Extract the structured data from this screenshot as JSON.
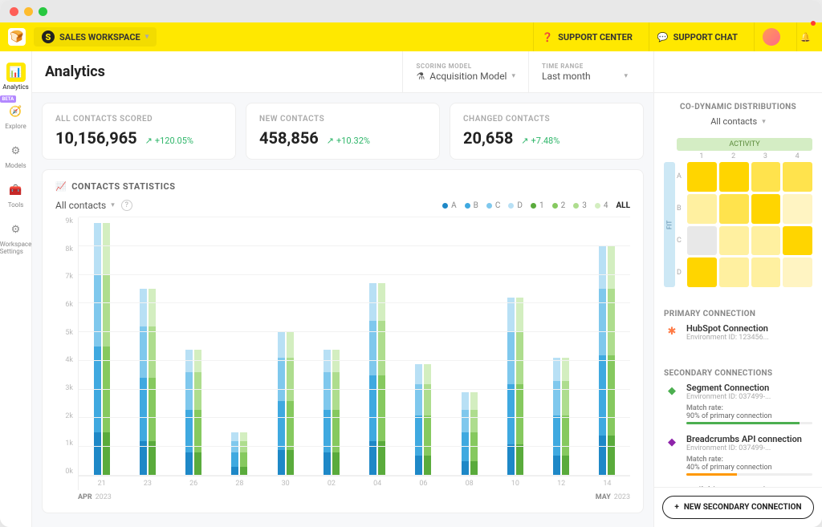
{
  "topbar": {
    "workspace_label": "SALES WORKSPACE",
    "support_center": "SUPPORT CENTER",
    "support_chat": "SUPPORT CHAT"
  },
  "sidebar": {
    "items": [
      {
        "icon": "📊",
        "label": "Analytics",
        "active": true
      },
      {
        "icon": "🧭",
        "label": "Explore",
        "beta": true
      },
      {
        "icon": "⚙",
        "label": "Models"
      },
      {
        "icon": "🧰",
        "label": "Tools"
      },
      {
        "icon": "⚙",
        "label": "Workspace Settings"
      }
    ]
  },
  "header": {
    "title": "Analytics",
    "scoring_label": "SCORING MODEL",
    "scoring_value": "Acquisition Model",
    "time_label": "TIME RANGE",
    "time_value": "Last month"
  },
  "kpis": [
    {
      "label": "ALL CONTACTS SCORED",
      "value": "10,156,965",
      "delta": "+120.05%"
    },
    {
      "label": "NEW CONTACTS",
      "value": "458,856",
      "delta": "+10.32%"
    },
    {
      "label": "CHANGED CONTACTS",
      "value": "20,658",
      "delta": "+7.48%"
    }
  ],
  "chart": {
    "title": "CONTACTS STATISTICS",
    "filter": "All contacts",
    "legend": [
      {
        "label": "A",
        "color": "#1e88c7"
      },
      {
        "label": "B",
        "color": "#3fa9e0"
      },
      {
        "label": "C",
        "color": "#7fc8ed"
      },
      {
        "label": "D",
        "color": "#b8e0f5"
      },
      {
        "label": "1",
        "color": "#5aab3c"
      },
      {
        "label": "2",
        "color": "#86c95f"
      },
      {
        "label": "3",
        "color": "#aedd8e"
      },
      {
        "label": "4",
        "color": "#d3eec0"
      }
    ],
    "all_label": "ALL",
    "ylim": [
      0,
      9
    ],
    "ytick_step": 1,
    "ytick_suffix": "k",
    "x_labels": [
      "21",
      "23",
      "26",
      "28",
      "30",
      "02",
      "04",
      "06",
      "08",
      "10",
      "12",
      "14"
    ],
    "start_month": "APR",
    "start_year": "2023",
    "end_month": "MAY",
    "end_year": "2023",
    "blue_segments": [
      "#1e88c7",
      "#3fa9e0",
      "#7fc8ed",
      "#b8e0f5"
    ],
    "green_segments": [
      "#5aab3c",
      "#86c95f",
      "#aedd8e",
      "#d3eec0"
    ],
    "groups": [
      {
        "blue": [
          1.5,
          3.0,
          2.5,
          1.8
        ],
        "green": [
          1.5,
          3.0,
          2.5,
          1.8
        ]
      },
      {
        "blue": [
          1.2,
          2.2,
          1.8,
          1.3
        ],
        "green": [
          1.2,
          2.2,
          1.8,
          1.3
        ]
      },
      {
        "blue": [
          0.8,
          1.5,
          1.3,
          0.8
        ],
        "green": [
          0.8,
          1.5,
          1.3,
          0.8
        ]
      },
      {
        "blue": [
          0.3,
          0.5,
          0.4,
          0.3
        ],
        "green": [
          0.3,
          0.5,
          0.4,
          0.3
        ]
      },
      {
        "blue": [
          0.9,
          1.7,
          1.5,
          0.9
        ],
        "green": [
          0.9,
          1.7,
          1.5,
          0.9
        ]
      },
      {
        "blue": [
          0.8,
          1.5,
          1.3,
          0.8
        ],
        "green": [
          0.8,
          1.5,
          1.3,
          0.8
        ]
      },
      {
        "blue": [
          1.2,
          2.3,
          1.9,
          1.3
        ],
        "green": [
          1.2,
          2.3,
          1.9,
          1.3
        ]
      },
      {
        "blue": [
          0.7,
          1.4,
          1.1,
          0.7
        ],
        "green": [
          0.7,
          1.4,
          1.1,
          0.7
        ]
      },
      {
        "blue": [
          0.5,
          1.0,
          0.8,
          0.6
        ],
        "green": [
          0.5,
          1.0,
          0.8,
          0.6
        ]
      },
      {
        "blue": [
          1.1,
          2.1,
          1.8,
          1.2
        ],
        "green": [
          1.1,
          2.1,
          1.8,
          1.2
        ]
      },
      {
        "blue": [
          0.7,
          1.4,
          1.2,
          0.8
        ],
        "green": [
          0.7,
          1.4,
          1.2,
          0.8
        ]
      },
      {
        "blue": [
          1.4,
          2.8,
          2.3,
          1.5
        ],
        "green": [
          1.4,
          2.8,
          2.3,
          1.5
        ]
      }
    ]
  },
  "right": {
    "dist_title": "CO-DYNAMIC DISTRIBUTIONS",
    "dist_filter": "All contacts",
    "activity_label": "ACTIVITY",
    "fit_label": "FIT",
    "col_labels": [
      "1",
      "2",
      "3",
      "4"
    ],
    "row_labels": [
      "A",
      "B",
      "C",
      "D"
    ],
    "heat_colors": [
      [
        "#ffd500",
        "#ffd500",
        "#ffe34d",
        "#ffe34d"
      ],
      [
        "#fff0a0",
        "#ffe34d",
        "#ffd500",
        "#fff4c2"
      ],
      [
        "#e8e8e8",
        "#fff0a0",
        "#fff0a0",
        "#ffd500"
      ],
      [
        "#ffd500",
        "#fff0a0",
        "#fff0a0",
        "#fff4c2"
      ]
    ],
    "primary_title": "PRIMARY CONNECTION",
    "primary": {
      "icon_color": "#ff7a45",
      "name": "HubSpot Connection",
      "env": "Environment ID: 123456..."
    },
    "secondary_title": "SECONDARY CONNECTIONS",
    "secondary": [
      {
        "icon_color": "#4caf50",
        "name": "Segment Connection",
        "env": "Environment ID: 037499-...",
        "match_label": "Match rate:",
        "match_text": "90% of primary connection",
        "match_pct": 90,
        "match_color": "#4caf50"
      },
      {
        "icon_color": "#8e24aa",
        "name": "Breadcrumbs API connection",
        "env": "Environment ID: 037499-...",
        "match_label": "Match rate:",
        "match_text": "40% of primary connection",
        "match_pct": 40,
        "match_color": "#ff9800"
      },
      {
        "icon_color": "#ffc107",
        "name": "Mailchimp Connection",
        "env": "",
        "match_label": "",
        "match_text": "",
        "match_pct": 0,
        "match_color": "#ccc"
      }
    ],
    "action_label": "NEW SECONDARY CONNECTION"
  }
}
